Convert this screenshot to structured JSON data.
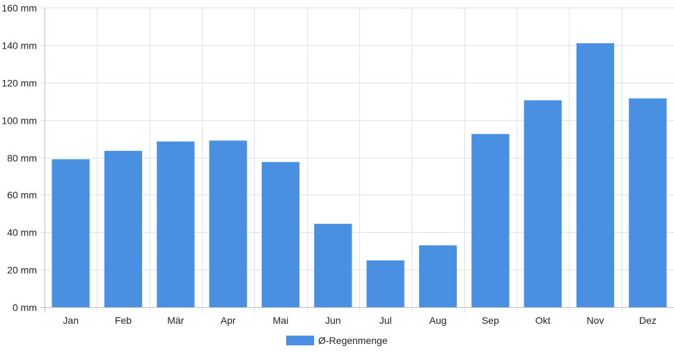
{
  "chart_data": {
    "type": "bar",
    "categories": [
      "Jan",
      "Feb",
      "Mär",
      "Apr",
      "Mai",
      "Jun",
      "Jul",
      "Aug",
      "Sep",
      "Okt",
      "Nov",
      "Dez"
    ],
    "series": [
      {
        "name": "Ø-Regenmenge",
        "color": "#4a90e2",
        "values": [
          79,
          83.5,
          88.5,
          89,
          77.5,
          44.5,
          25,
          33,
          92.5,
          110.5,
          141,
          111.5
        ]
      }
    ],
    "ylim": [
      0,
      160
    ],
    "yticks": [
      0,
      20,
      40,
      60,
      80,
      100,
      120,
      140,
      160
    ],
    "ytick_labels": [
      "0 mm",
      "20 mm",
      "40 mm",
      "60 mm",
      "80 mm",
      "100 mm",
      "120 mm",
      "140 mm",
      "160 mm"
    ],
    "grid": true,
    "legend_position": "bottom-center"
  }
}
